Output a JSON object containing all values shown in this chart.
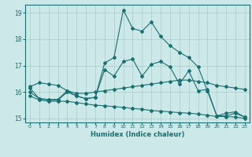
{
  "bg_color": "#cce8e8",
  "grid_color": "#aacccc",
  "line_color": "#1a7070",
  "xlabel": "Humidex (Indice chaleur)",
  "xlim": [
    -0.5,
    23.5
  ],
  "ylim": [
    14.85,
    19.3
  ],
  "yticks": [
    15,
    16,
    17,
    18,
    19
  ],
  "xticks": [
    0,
    1,
    2,
    3,
    4,
    5,
    6,
    7,
    8,
    9,
    10,
    11,
    12,
    13,
    14,
    15,
    16,
    17,
    18,
    19,
    20,
    21,
    22,
    23
  ],
  "series_main": {
    "x": [
      0,
      1,
      2,
      3,
      4,
      5,
      6,
      7,
      8,
      9,
      10,
      11,
      12,
      13,
      14,
      15,
      16,
      17,
      18,
      19,
      20,
      21,
      22,
      23
    ],
    "y": [
      16.2,
      16.35,
      16.3,
      16.25,
      16.05,
      15.95,
      15.95,
      16.0,
      16.05,
      16.1,
      16.15,
      16.2,
      16.25,
      16.3,
      16.35,
      16.4,
      16.45,
      16.45,
      16.4,
      16.35,
      16.25,
      16.2,
      16.15,
      16.1
    ]
  },
  "series_peak": {
    "x": [
      0,
      1,
      2,
      3,
      4,
      5,
      6,
      7,
      8,
      9,
      10,
      11,
      12,
      13,
      14,
      15,
      16,
      17,
      18,
      19,
      20,
      21,
      22,
      23
    ],
    "y": [
      16.15,
      15.75,
      15.72,
      15.72,
      16.05,
      15.85,
      15.75,
      15.8,
      17.1,
      17.3,
      19.1,
      18.4,
      18.3,
      18.65,
      18.1,
      17.75,
      17.5,
      17.3,
      16.95,
      16.05,
      15.1,
      15.2,
      15.25,
      15.05
    ]
  },
  "series_mid": {
    "x": [
      0,
      1,
      2,
      3,
      4,
      5,
      6,
      7,
      8,
      9,
      10,
      11,
      12,
      13,
      14,
      15,
      16,
      17,
      18,
      19,
      20,
      21,
      22,
      23
    ],
    "y": [
      16.0,
      15.75,
      15.7,
      15.7,
      16.0,
      15.85,
      15.75,
      15.8,
      16.85,
      16.6,
      17.15,
      17.25,
      16.6,
      17.05,
      17.15,
      16.95,
      16.3,
      16.8,
      16.05,
      16.1,
      15.1,
      15.1,
      15.2,
      15.05
    ]
  },
  "series_low": {
    "x": [
      0,
      1,
      2,
      3,
      4,
      5,
      6,
      7,
      8,
      9,
      10,
      11,
      12,
      13,
      14,
      15,
      16,
      17,
      18,
      19,
      20,
      21,
      22,
      23
    ],
    "y": [
      15.85,
      15.7,
      15.65,
      15.65,
      15.65,
      15.6,
      15.55,
      15.5,
      15.48,
      15.45,
      15.42,
      15.38,
      15.35,
      15.3,
      15.28,
      15.25,
      15.22,
      15.2,
      15.17,
      15.12,
      15.08,
      15.07,
      15.06,
      15.0
    ]
  }
}
